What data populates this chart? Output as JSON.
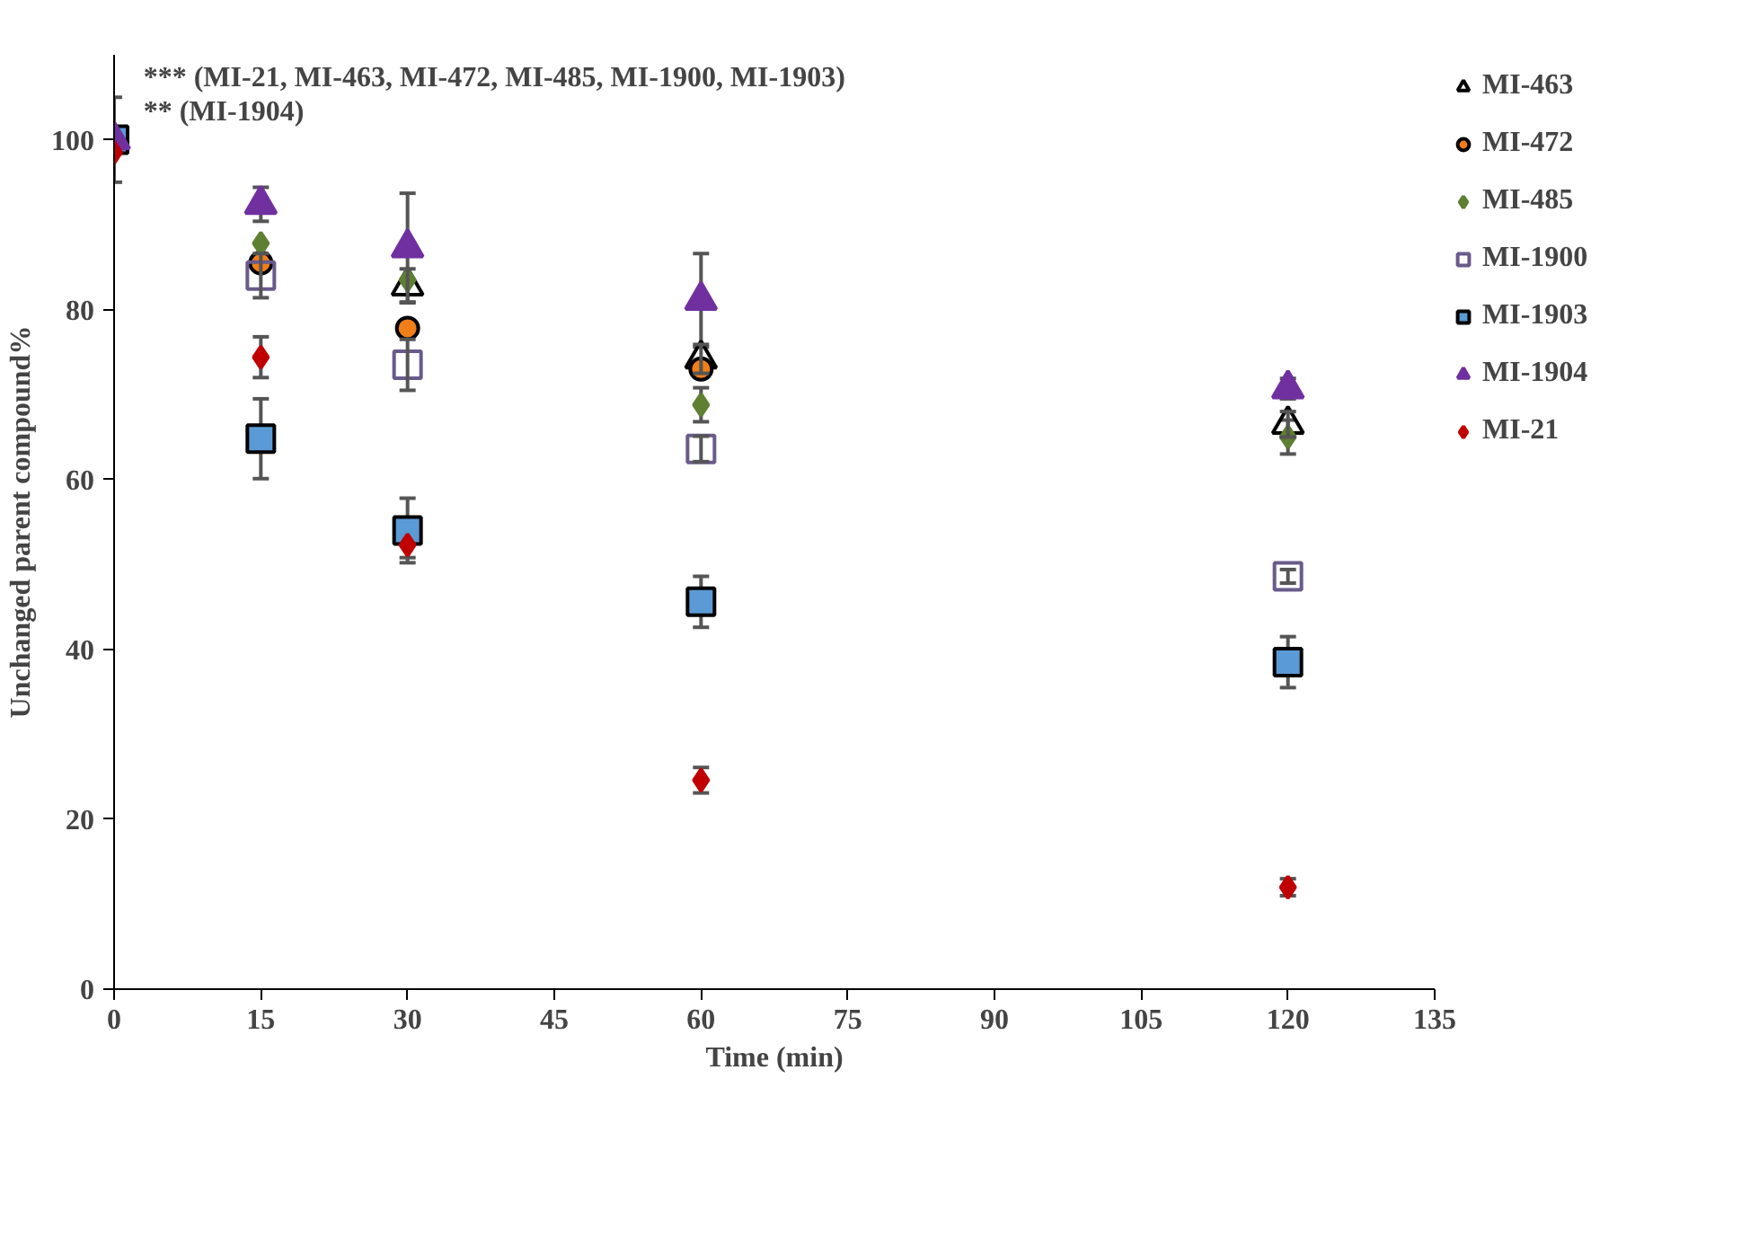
{
  "chart_data": {
    "type": "scatter",
    "xlabel": "Time (min)",
    "ylabel": "Unchanged parent compound%",
    "x": [
      0,
      15,
      30,
      60,
      120
    ],
    "series": [
      {
        "name": "MI-463",
        "color": "#000000",
        "marker": "triangle_open",
        "values": [
          null,
          null,
          82.8,
          74.2,
          66.5
        ],
        "errors": [
          null,
          null,
          2,
          1.7,
          1.5
        ]
      },
      {
        "name": "MI-472",
        "color": "#f07f1a",
        "marker": "circle",
        "values": [
          null,
          85.5,
          77.8,
          73,
          null
        ]
      },
      {
        "name": "MI-485",
        "color": "#5f7f32",
        "marker": "diamond",
        "values": [
          null,
          87.8,
          83.5,
          68.8,
          65
        ],
        "errors": [
          null,
          null,
          null,
          2,
          2
        ]
      },
      {
        "name": "MI-1900",
        "color": "#6a5a8a",
        "marker": "square_open",
        "values": [
          null,
          84,
          73.5,
          63.6,
          48.6
        ],
        "errors": [
          null,
          2.6,
          3,
          1.5,
          0.8
        ]
      },
      {
        "name": "MI-1903",
        "color": "#5b9bd5",
        "marker": "square",
        "values": [
          100,
          64.8,
          54,
          45.6,
          38.5
        ],
        "errors": [
          5,
          4.7,
          3.8,
          3,
          3
        ]
      },
      {
        "name": "MI-1904",
        "color": "#7030a0",
        "marker": "triangle",
        "values": [
          100,
          92.4,
          87.3,
          81.1,
          70.7
        ],
        "errors": [
          null,
          2,
          6.4,
          5.5,
          1.2
        ]
      },
      {
        "name": "MI-21",
        "color": "#c00000",
        "marker": "diamond",
        "values": [
          98.5,
          74.4,
          52.3,
          24.6,
          12
        ],
        "errors": [
          null,
          2.4,
          1.5,
          1.5,
          1
        ]
      }
    ],
    "xlim": [
      0,
      135
    ],
    "xticks": [
      0,
      15,
      30,
      45,
      60,
      75,
      90,
      105,
      120,
      135
    ],
    "ylim": [
      0,
      110
    ],
    "yticks": [
      0,
      20,
      40,
      60,
      80,
      100
    ],
    "annotations": [
      "*** (MI-21, MI-463, MI-472, MI-485, MI-1900, MI-1903)",
      "** (MI-1904)"
    ],
    "grid": false,
    "legend": "top right"
  }
}
